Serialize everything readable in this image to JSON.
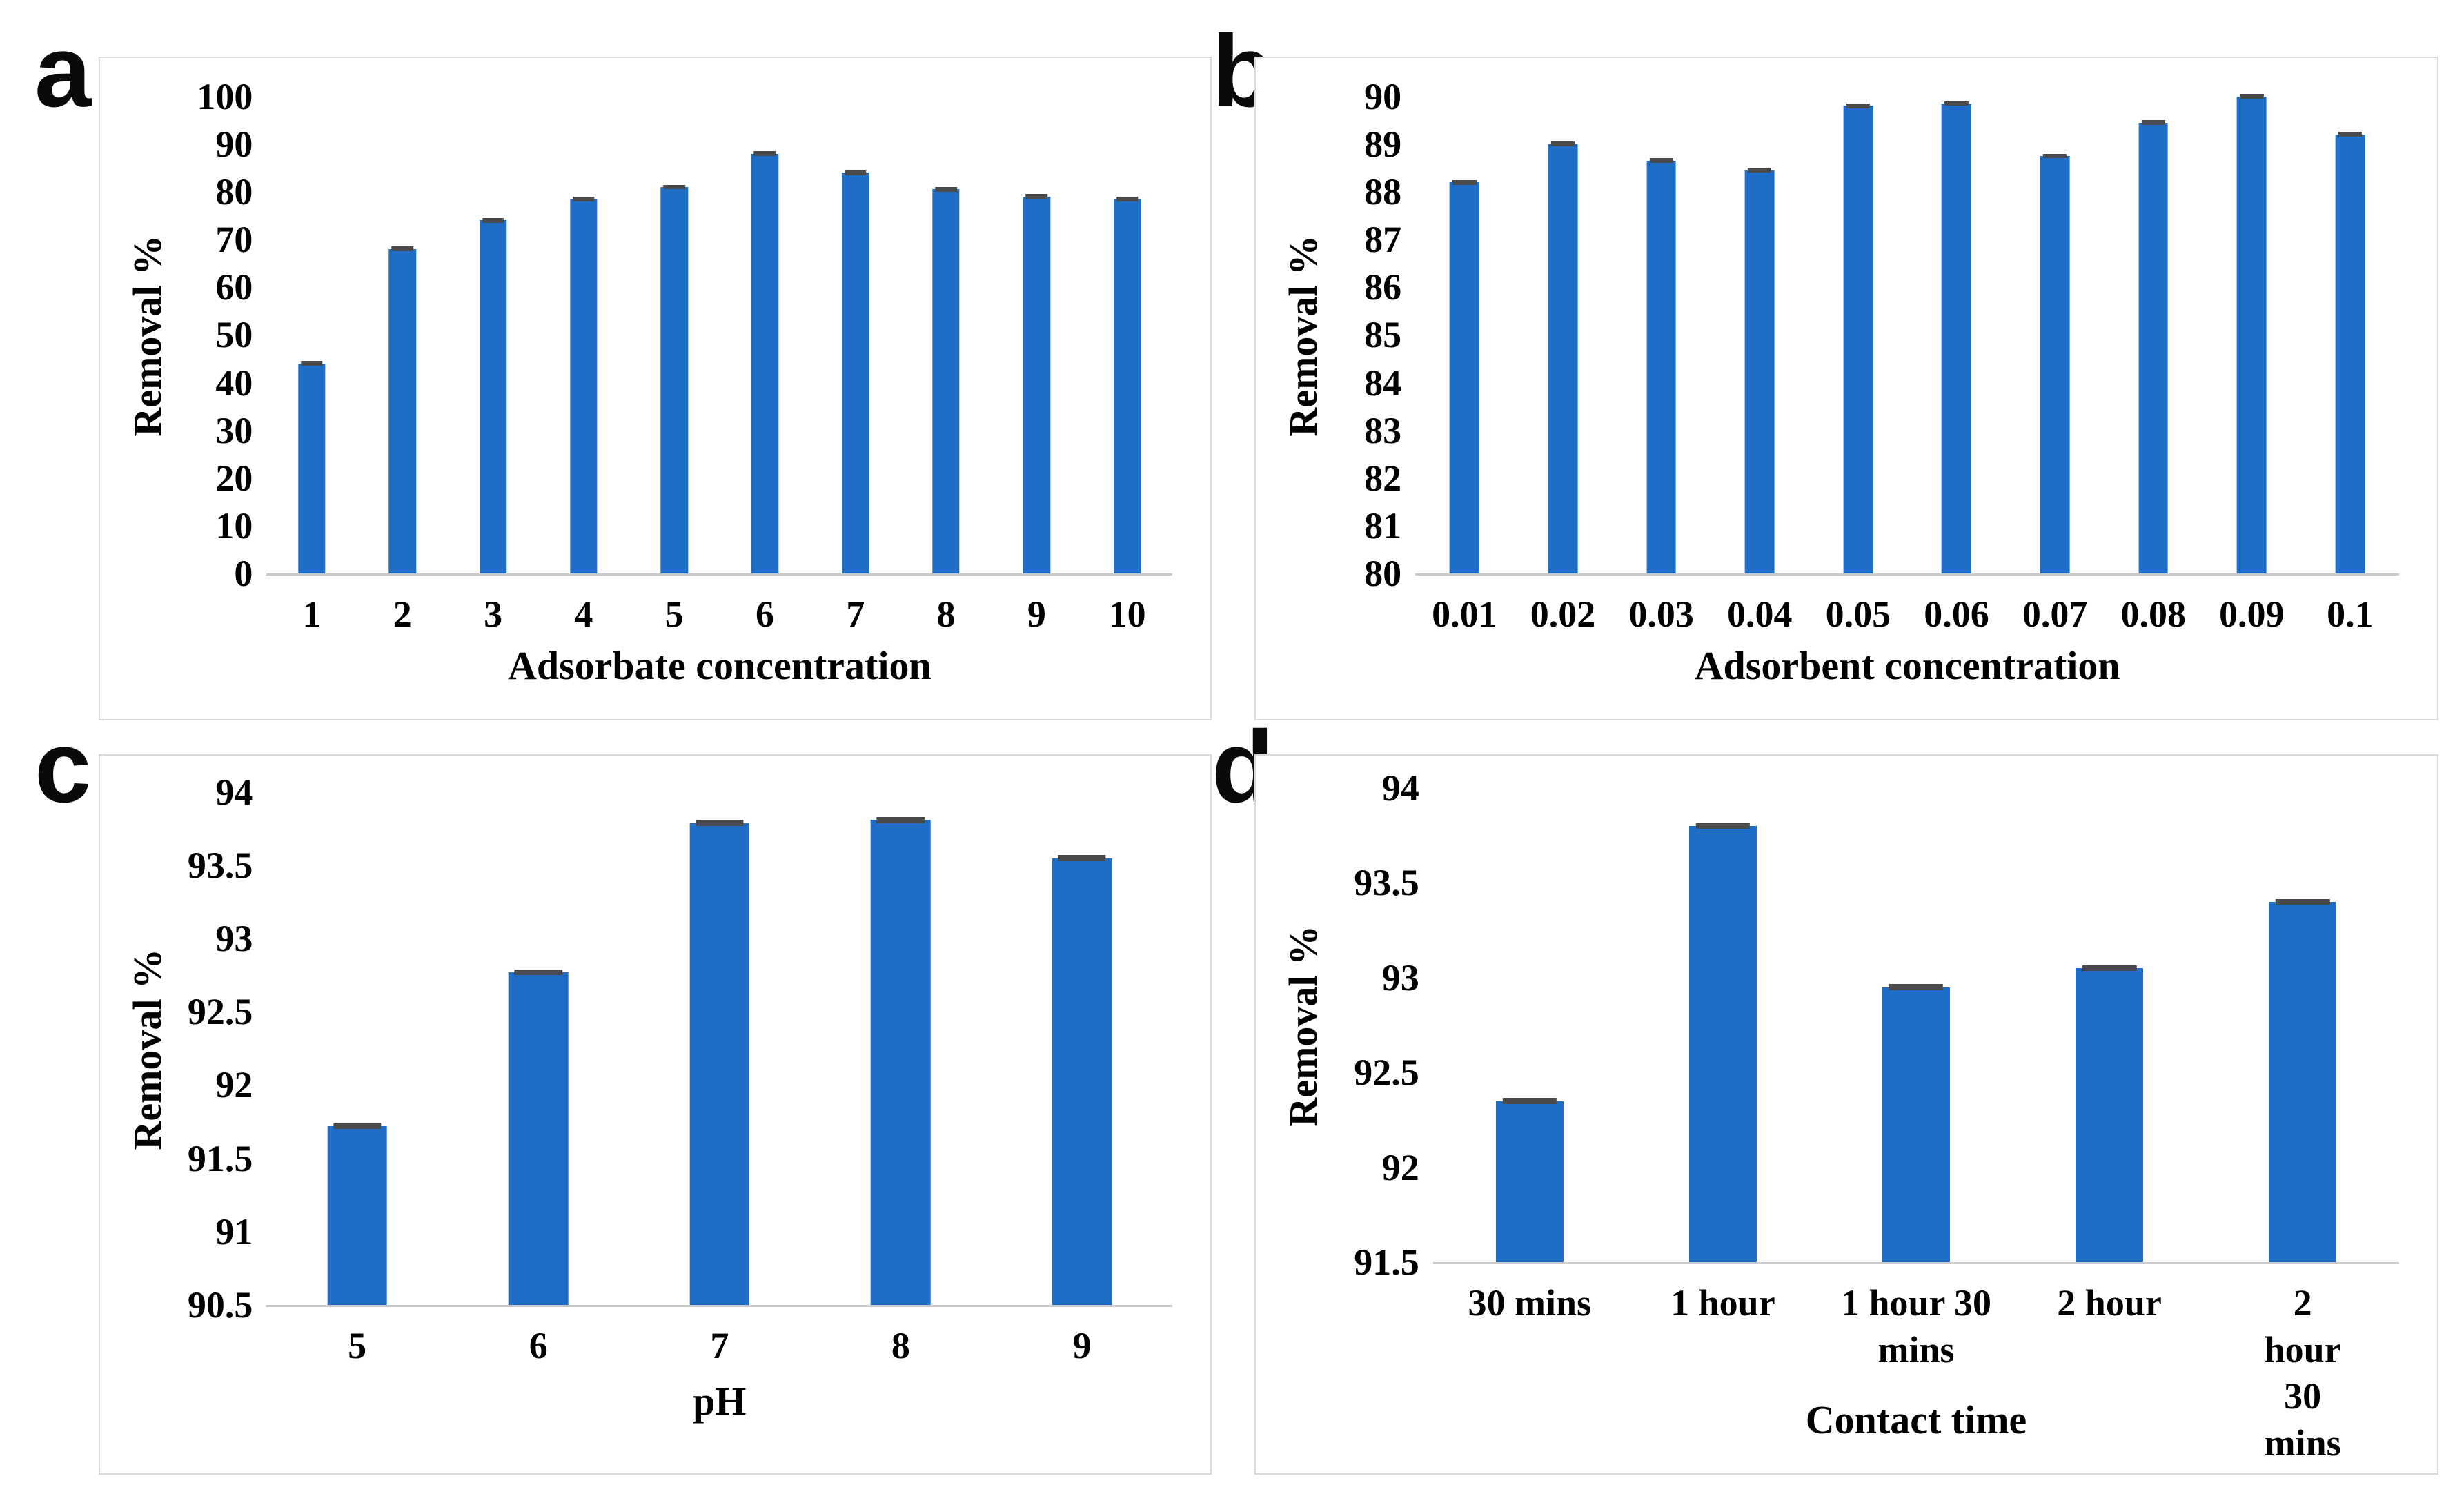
{
  "figure": {
    "background": "#ffffff",
    "bar_color": "#1e6ec8",
    "error_cap_color": "#4a4a4a",
    "axis_line_color": "#c9c9c9",
    "panel_border_color": "#d9d9d9",
    "text_color": "#000000"
  },
  "chart_data": [
    {
      "letter": "a",
      "type": "bar",
      "title": "",
      "xlabel": "Adsorbate concentration",
      "ylabel": "Removal %",
      "categories": [
        "1",
        "2",
        "3",
        "4",
        "5",
        "6",
        "7",
        "8",
        "9",
        "10"
      ],
      "values": [
        44,
        68,
        74,
        78.5,
        81,
        88,
        84,
        80.5,
        79,
        78.5
      ],
      "error": 0.5,
      "ylim": [
        0,
        100
      ],
      "yticks": [
        "0",
        "10",
        "20",
        "30",
        "40",
        "50",
        "60",
        "70",
        "80",
        "90",
        "100"
      ],
      "grid": false,
      "legend": null
    },
    {
      "letter": "b",
      "type": "bar",
      "title": "",
      "xlabel": "Adsorbent concentration",
      "ylabel": "Removal %",
      "categories": [
        "0.01",
        "0.02",
        "0.03",
        "0.04",
        "0.05",
        "0.06",
        "0.07",
        "0.08",
        "0.09",
        "0.1"
      ],
      "values": [
        88.2,
        89.0,
        88.65,
        88.45,
        89.8,
        89.85,
        88.75,
        89.45,
        90.0,
        89.2
      ],
      "error": 0.05,
      "ylim": [
        80,
        90
      ],
      "yticks": [
        "80",
        "81",
        "82",
        "83",
        "84",
        "85",
        "86",
        "87",
        "88",
        "89",
        "90"
      ],
      "grid": false,
      "legend": null
    },
    {
      "letter": "c",
      "type": "bar",
      "title": "",
      "xlabel": "pH",
      "ylabel": "Removal %",
      "categories": [
        "5",
        "6",
        "7",
        "8",
        "9"
      ],
      "values": [
        91.72,
        92.77,
        93.79,
        93.81,
        93.55
      ],
      "error": 0.02,
      "ylim": [
        90.5,
        94
      ],
      "yticks": [
        "90.5",
        "91",
        "91.5",
        "92",
        "92.5",
        "93",
        "93.5",
        "94"
      ],
      "grid": false,
      "legend": null
    },
    {
      "letter": "d",
      "type": "bar",
      "title": "",
      "xlabel": "Contact time",
      "ylabel": "Removal %",
      "categories": [
        "30 mins",
        "1 hour",
        "1 hour 30\nmins",
        "2 hour",
        "2 hour 30\nmins"
      ],
      "values": [
        92.35,
        93.8,
        92.95,
        93.05,
        93.4
      ],
      "error": 0.015,
      "ylim": [
        91.5,
        94
      ],
      "yticks": [
        "91.5",
        "92",
        "92.5",
        "93",
        "93.5",
        "94"
      ],
      "grid": false,
      "legend": null
    }
  ]
}
